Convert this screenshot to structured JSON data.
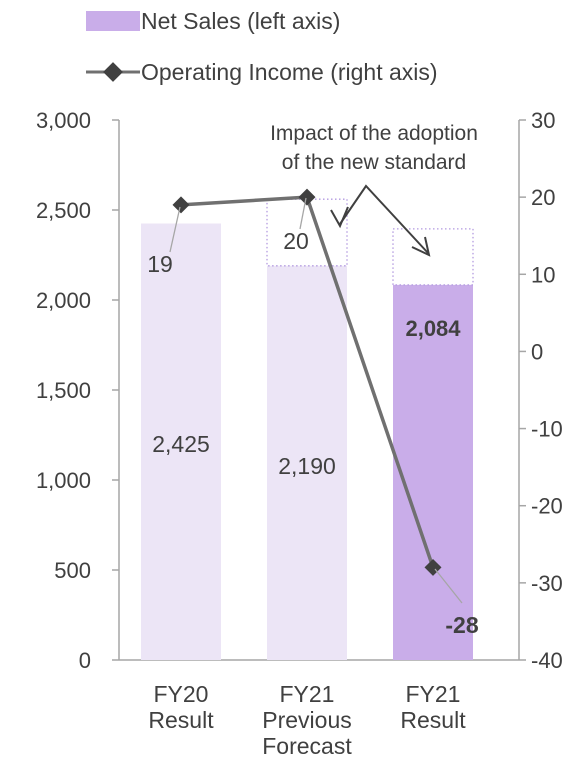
{
  "chart_data": {
    "type": "bar",
    "categories": [
      [
        "FY20",
        "Result"
      ],
      [
        "FY21",
        "Previous",
        "Forecast"
      ],
      [
        "FY21",
        "Result"
      ]
    ],
    "series": [
      {
        "name": "Net Sales (left axis)",
        "axis": "left",
        "kind": "bar",
        "values": [
          2425,
          2190,
          2084
        ],
        "labels": [
          "2,425",
          "2,190",
          "2,084"
        ],
        "label_bold": [
          false,
          false,
          true
        ],
        "colors": [
          "#ece5f6",
          "#ece5f6",
          "#c9ade9"
        ]
      },
      {
        "name": "Operating Income (right axis)",
        "axis": "right",
        "kind": "line",
        "values": [
          19,
          20,
          -28
        ],
        "labels": [
          "19",
          "20",
          "-28"
        ],
        "label_bold": [
          false,
          false,
          true
        ],
        "color": "#707070"
      }
    ],
    "adoption_impact_boxes": [
      {
        "category_index": 1,
        "from": 2190,
        "to": 2560
      },
      {
        "category_index": 2,
        "from": 2084,
        "to": 2395
      }
    ],
    "left_axis": {
      "ylim": [
        0,
        3000
      ],
      "ticks": [
        0,
        500,
        1000,
        1500,
        2000,
        2500,
        3000
      ],
      "tick_labels": [
        "0",
        "500",
        "1,000",
        "1,500",
        "2,000",
        "2,500",
        "3,000"
      ]
    },
    "right_axis": {
      "ylim": [
        -40,
        30
      ],
      "ticks": [
        -40,
        -30,
        -20,
        -10,
        0,
        10,
        20,
        30
      ],
      "tick_labels": [
        "-40",
        "-30",
        "-20",
        "-10",
        "0",
        "10",
        "20",
        "30"
      ]
    },
    "annotation": [
      "Impact of the adoption",
      "of the new standard"
    ],
    "legend_position": "top",
    "grid": false,
    "legend_colors": {
      "bar": "#c9ade9",
      "line": "#707070"
    }
  }
}
